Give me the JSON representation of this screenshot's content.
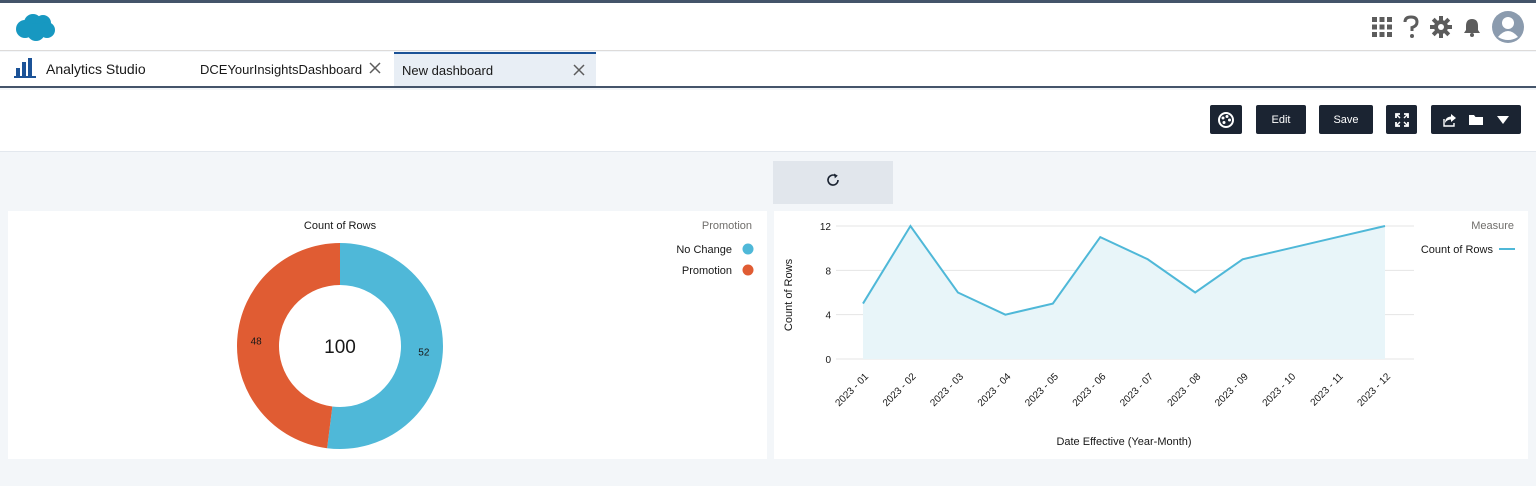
{
  "header": {
    "logo": "salesforce-cloud-logo",
    "icons": [
      "app-launcher-icon",
      "help-icon",
      "setup-gear-icon",
      "notifications-bell-icon",
      "user-avatar-icon"
    ]
  },
  "tabs": {
    "app_name": "Analytics Studio",
    "items": [
      {
        "label": "DCEYourInsightsDashboard"
      },
      {
        "label": "New dashboard"
      }
    ]
  },
  "toolbar": {
    "edit_label": "Edit",
    "save_label": "Save",
    "icons": [
      "theme-palette-icon",
      "fullscreen-icon",
      "share-icon",
      "folder-icon",
      "caret-down-icon"
    ]
  },
  "colors": {
    "no_change": "#4fb8d8",
    "promotion": "#e05c33",
    "line": "#4fb8d8",
    "area": "#e8f5f9",
    "button_dark": "#1b2432"
  },
  "chart_data": [
    {
      "type": "pie",
      "donut": true,
      "title": "Count of Rows",
      "center_label": "100",
      "legend_title": "Promotion",
      "legend_position": "top-right",
      "categories": [
        "No Change",
        "Promotion"
      ],
      "values": [
        52,
        48
      ],
      "value_labels": [
        "52",
        "48"
      ]
    },
    {
      "type": "area",
      "title": "",
      "xlabel": "Date Effective (Year-Month)",
      "ylabel": "Count of Rows",
      "legend_title": "Measure",
      "legend_position": "top-right",
      "categories": [
        "2023 - 01",
        "2023 - 02",
        "2023 - 03",
        "2023 - 04",
        "2023 - 05",
        "2023 - 06",
        "2023 - 07",
        "2023 - 08",
        "2023 - 09",
        "2023 - 10",
        "2023 - 11",
        "2023 - 12"
      ],
      "series": [
        {
          "name": "Count of Rows",
          "values": [
            5,
            12,
            6,
            4,
            5,
            11,
            9,
            6,
            9,
            10,
            11,
            12
          ]
        }
      ],
      "ylim": [
        0,
        12
      ],
      "yticks": [
        "0",
        "4",
        "8",
        "12"
      ],
      "grid": true
    }
  ]
}
